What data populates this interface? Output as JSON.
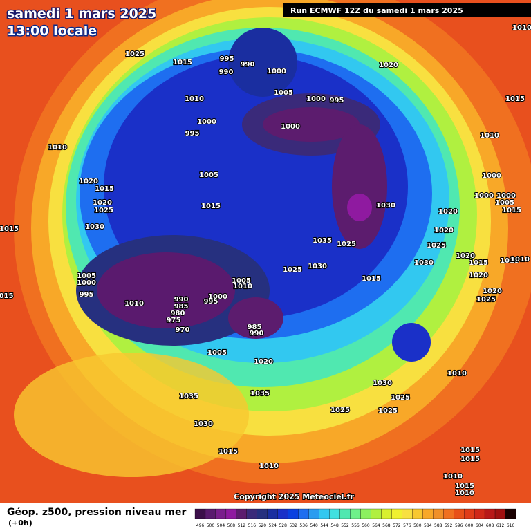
{
  "header": {
    "date": "samedi 1 mars 2025",
    "time": "13:00 locale",
    "run": "Run ECMWF 12Z du samedi 1 mars 2025"
  },
  "copyright": "Copyright 2025 Meteociel.fr",
  "caption": {
    "title": "Géop. z500, pression niveau mer",
    "step": "(+0h)"
  },
  "legend": {
    "values": [
      496,
      500,
      504,
      508,
      512,
      516,
      520,
      524,
      528,
      532,
      536,
      540,
      544,
      548,
      552,
      556,
      560,
      564,
      568,
      572,
      576,
      580,
      584,
      588,
      592,
      596,
      600,
      604,
      608,
      612,
      616
    ],
    "colors": [
      "#3c0f4a",
      "#5a1a6e",
      "#7a1e8c",
      "#8f1aa0",
      "#5c1c6e",
      "#3a2a7a",
      "#26307f",
      "#1a2ea0",
      "#1a30c8",
      "#0a40e0",
      "#1e6ef0",
      "#2a9cf0",
      "#32c8f0",
      "#40e0e0",
      "#50e8b0",
      "#6ef08a",
      "#8cf060",
      "#b0f040",
      "#d8f030",
      "#f0f030",
      "#f8e040",
      "#f8c830",
      "#f8a828",
      "#f09028",
      "#f07020",
      "#e85018",
      "#e03c18",
      "#d02818",
      "#b81818",
      "#a01010",
      "#1a0000"
    ]
  },
  "isobar_labels": [
    "1025",
    "1015",
    "995",
    "990",
    "990",
    "1000",
    "1005",
    "1010",
    "1000",
    "995",
    "1020",
    "1010",
    "1015",
    "1000",
    "995",
    "1000",
    "1010",
    "1010",
    "1020",
    "1015",
    "1005",
    "1000",
    "1000",
    "1000",
    "1005",
    "1015",
    "1020",
    "1025",
    "1015",
    "1030",
    "1015",
    "1030",
    "1020",
    "1020",
    "1035",
    "1025",
    "1025",
    "1020",
    "1015",
    "1015",
    "1010",
    "1030",
    "1025",
    "1030",
    "1015",
    "1020",
    "1020",
    "1025",
    "1005",
    "1000",
    "995",
    "1010",
    "990",
    "985",
    "980",
    "975",
    "970",
    "995",
    "1000",
    "1005",
    "1010",
    "985",
    "990",
    "015",
    "1005",
    "1020",
    "1010",
    "1030",
    "1025",
    "1035",
    "1035",
    "1025",
    "1025",
    "1030",
    "1015",
    "1010",
    "1015",
    "1015",
    "1010",
    "1015",
    "1010"
  ]
}
